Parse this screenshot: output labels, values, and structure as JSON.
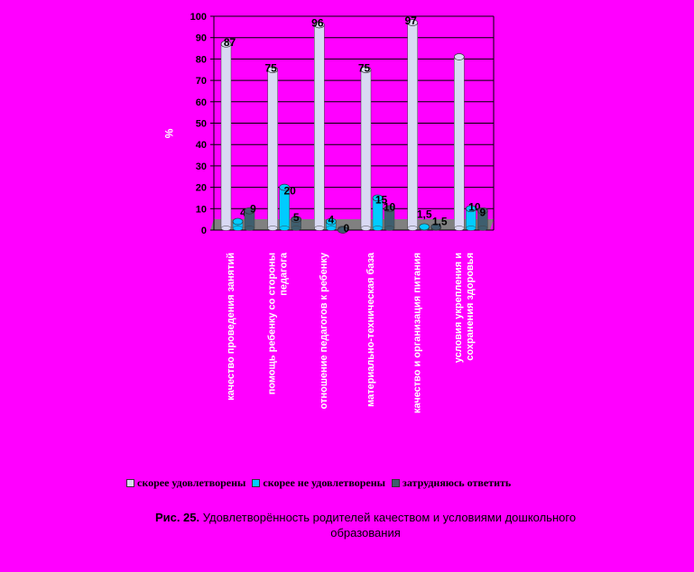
{
  "chart_data": {
    "type": "bar",
    "ylabel": "%",
    "ylim": [
      0,
      100
    ],
    "yticks": [
      "0",
      "10",
      "20",
      "30",
      "40",
      "50",
      "60",
      "70",
      "80",
      "90",
      "100"
    ],
    "categories": [
      [
        "качество проведения занятий"
      ],
      [
        "помощь ребенку со стороны",
        "педагога"
      ],
      [
        "отношение педагогов к ребенку"
      ],
      [
        "материально-техническая база"
      ],
      [
        "качество и организация питания"
      ],
      [
        "условия укрепления и",
        "сохранения здоровья"
      ]
    ],
    "series": [
      {
        "name": "скорее удовлетворены",
        "color": "#D9D9F3",
        "values": [
          87,
          75,
          96,
          75,
          97,
          81
        ],
        "labels": [
          "87",
          "75",
          "96",
          "75",
          "97",
          "81"
        ]
      },
      {
        "name": "скорее не удовлетворены",
        "color": "#00CCFF",
        "values": [
          4,
          20,
          4,
          15,
          1.5,
          10
        ],
        "labels": [
          "4",
          "20",
          "4",
          "15",
          "1,5",
          "10"
        ]
      },
      {
        "name": "затрудняюсь ответить",
        "color": "#3E5E6E",
        "values": [
          9,
          5,
          0,
          10,
          1.5,
          9
        ],
        "labels": [
          "9",
          "5",
          "0",
          "10",
          "1,5",
          "9"
        ]
      }
    ],
    "grid": true,
    "legend_position": "bottom"
  },
  "caption": {
    "label": "Рис. 25.",
    "text": " Удовлетворённость родителей качеством и условиями дошкольного образования"
  }
}
